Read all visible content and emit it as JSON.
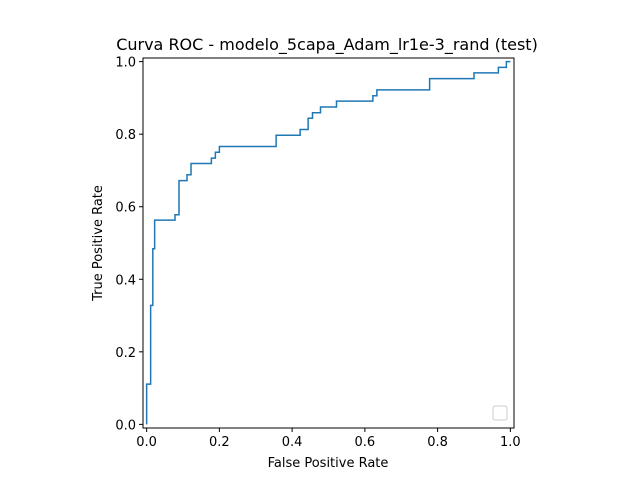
{
  "chart_data": {
    "type": "line",
    "title": "Curva ROC - modelo_5capa_Adam_lr1e-3_rand (test)",
    "xlabel": "False Positive Rate",
    "ylabel": "True Positive Rate",
    "xlim": [
      -0.01,
      1.01
    ],
    "ylim": [
      -0.01,
      1.01
    ],
    "xticks": [
      0.0,
      0.2,
      0.4,
      0.6,
      0.8,
      1.0
    ],
    "yticks": [
      0.0,
      0.2,
      0.4,
      0.6,
      0.8,
      1.0
    ],
    "xtick_labels": [
      "0.0",
      "0.2",
      "0.4",
      "0.6",
      "0.8",
      "1.0"
    ],
    "ytick_labels": [
      "0.0",
      "0.2",
      "0.4",
      "0.6",
      "0.8",
      "1.0"
    ],
    "grid": false,
    "legend": "bottom-right (empty)",
    "series": [
      {
        "color": "#1f77b4",
        "x": [
          0.0,
          0.0,
          0.011,
          0.011,
          0.017,
          0.017,
          0.022,
          0.022,
          0.033,
          0.033,
          0.078,
          0.078,
          0.089,
          0.089,
          0.111,
          0.111,
          0.122,
          0.122,
          0.178,
          0.178,
          0.189,
          0.189,
          0.2,
          0.2,
          0.356,
          0.356,
          0.422,
          0.422,
          0.444,
          0.444,
          0.456,
          0.456,
          0.478,
          0.478,
          0.522,
          0.522,
          0.622,
          0.622,
          0.633,
          0.633,
          0.778,
          0.778,
          0.9,
          0.9,
          0.967,
          0.967,
          0.989,
          0.989,
          1.0
        ],
        "y": [
          0.0,
          0.111,
          0.111,
          0.328,
          0.328,
          0.484,
          0.484,
          0.563,
          0.563,
          0.563,
          0.563,
          0.578,
          0.578,
          0.672,
          0.672,
          0.688,
          0.688,
          0.719,
          0.719,
          0.734,
          0.734,
          0.75,
          0.75,
          0.766,
          0.766,
          0.797,
          0.797,
          0.813,
          0.813,
          0.844,
          0.844,
          0.859,
          0.859,
          0.875,
          0.875,
          0.891,
          0.891,
          0.906,
          0.906,
          0.922,
          0.922,
          0.953,
          0.953,
          0.969,
          0.969,
          0.984,
          0.984,
          1.0,
          1.0
        ]
      }
    ]
  }
}
